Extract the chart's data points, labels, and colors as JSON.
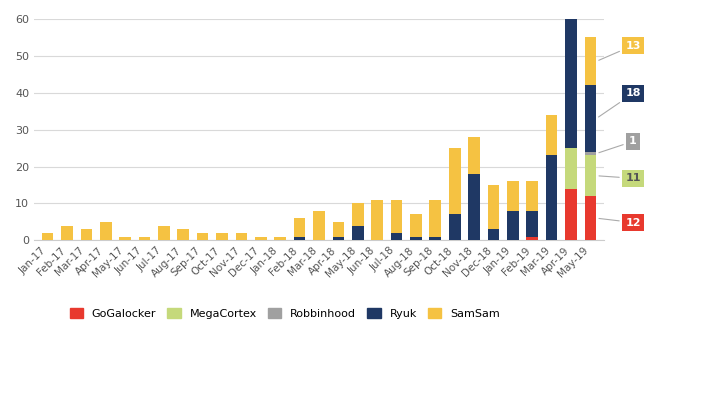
{
  "months": [
    "Jan-17",
    "Feb-17",
    "Mar-17",
    "Apr-17",
    "May-17",
    "Jun-17",
    "Jul-17",
    "Aug-17",
    "Sep-17",
    "Oct-17",
    "Nov-17",
    "Dec-17",
    "Jan-18",
    "Feb-18",
    "Mar-18",
    "Apr-18",
    "May-18",
    "Jun-18",
    "Jul-18",
    "Aug-18",
    "Sep-18",
    "Oct-18",
    "Nov-18",
    "Dec-18",
    "Jan-19",
    "Feb-19",
    "Mar-19",
    "Apr-19",
    "May-19"
  ],
  "SamSam": [
    2,
    4,
    3,
    5,
    1,
    1,
    4,
    3,
    2,
    2,
    2,
    1,
    1,
    5,
    8,
    4,
    6,
    11,
    9,
    6,
    10,
    18,
    10,
    12,
    8,
    8,
    11,
    0,
    13
  ],
  "Ryuk": [
    0,
    0,
    0,
    0,
    0,
    0,
    0,
    0,
    0,
    0,
    0,
    0,
    0,
    1,
    0,
    1,
    4,
    0,
    2,
    1,
    1,
    7,
    18,
    3,
    8,
    7,
    23,
    42,
    18
  ],
  "GoGalocker": [
    0,
    0,
    0,
    0,
    0,
    0,
    0,
    0,
    0,
    0,
    0,
    0,
    0,
    0,
    0,
    0,
    0,
    0,
    0,
    0,
    0,
    0,
    0,
    0,
    0,
    1,
    0,
    14,
    12
  ],
  "MegaCortex": [
    0,
    0,
    0,
    0,
    0,
    0,
    0,
    0,
    0,
    0,
    0,
    0,
    0,
    0,
    0,
    0,
    0,
    0,
    0,
    0,
    0,
    0,
    0,
    0,
    0,
    0,
    0,
    11,
    11
  ],
  "Robbinhood": [
    0,
    0,
    0,
    0,
    0,
    0,
    0,
    0,
    0,
    0,
    0,
    0,
    0,
    0,
    0,
    0,
    0,
    0,
    0,
    0,
    0,
    0,
    0,
    0,
    0,
    0,
    0,
    0,
    1
  ],
  "colors": {
    "GoGalocker": "#e8392e",
    "MegaCortex": "#c5d97b",
    "Robbinhood": "#a0a0a0",
    "Ryuk": "#1f3864",
    "SamSam": "#f5c242"
  },
  "ylim": [
    0,
    60
  ],
  "yticks": [
    0,
    10,
    20,
    30,
    40,
    50,
    60
  ],
  "background_color": "#ffffff",
  "grid_color": "#d9d9d9"
}
